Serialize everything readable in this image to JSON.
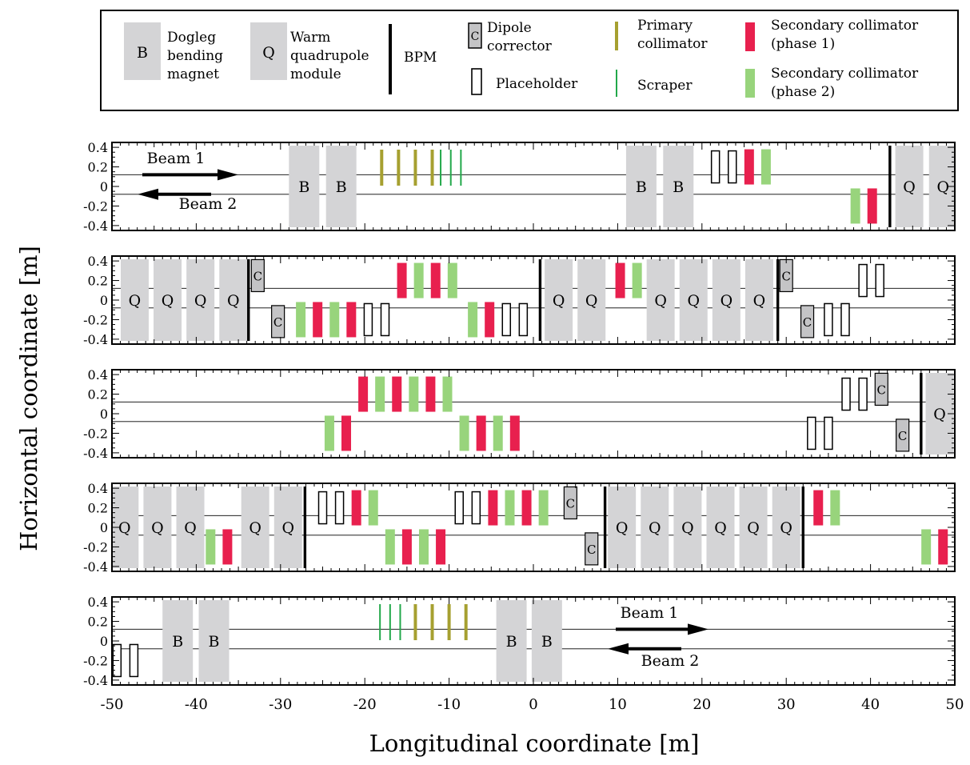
{
  "legend": {
    "dogleg": "B",
    "dogleg_text": [
      "Dogleg",
      "bending",
      "magnet"
    ],
    "quad": "Q",
    "quad_text": [
      "Warm",
      "quadrupole",
      "module"
    ],
    "bpm_text": "BPM",
    "corrector": "C",
    "corrector_text": [
      "Dipole",
      "corrector"
    ],
    "placeholder_text": "Placeholder",
    "primary_text": [
      "Primary",
      "collimator"
    ],
    "scraper_text": "Scraper",
    "sec1_text": [
      "Secondary collimator",
      "(phase 1)"
    ],
    "sec2_text": [
      "Secondary collimator",
      "(phase 2)"
    ]
  },
  "axes": {
    "xlabel": "Longitudinal coordinate [m]",
    "ylabel": "Horizontal coordinate [m]",
    "xticks": [
      "-50",
      "-40",
      "-30",
      "-20",
      "-10",
      "0",
      "10",
      "20",
      "30",
      "40",
      "50"
    ],
    "yticks": [
      "0.4",
      "0.2",
      "0",
      "-0.2",
      "-0.4"
    ],
    "xlim": [
      -50,
      50
    ],
    "ylim": [
      -0.45,
      0.45
    ]
  },
  "beam_labels": {
    "beam1": "Beam 1",
    "beam2": "Beam 2"
  },
  "colors": {
    "magnet": "#d4d4d6",
    "corrector": "#c4c4c6",
    "primary": "#a6a030",
    "scraper": "#22a84a",
    "sec1": "#e8204e",
    "sec2": "#98d47c"
  },
  "chart_data": {
    "type": "beamline-layout",
    "beam_lines_y": [
      0.12,
      -0.08
    ],
    "panels": [
      {
        "elements": [
          {
            "t": "B",
            "s": -27.2
          },
          {
            "t": "B",
            "s": -22.8
          },
          {
            "t": "P",
            "s": -18
          },
          {
            "t": "P",
            "s": -16
          },
          {
            "t": "P",
            "s": -14
          },
          {
            "t": "P",
            "s": -12
          },
          {
            "t": "S",
            "s": -11
          },
          {
            "t": "S",
            "s": -9.8
          },
          {
            "t": "S",
            "s": -8.6
          },
          {
            "t": "B",
            "s": 12.8
          },
          {
            "t": "B",
            "s": 17.2
          },
          {
            "t": "H",
            "s": 21.6,
            "b": 1
          },
          {
            "t": "H",
            "s": 23.6,
            "b": 1
          },
          {
            "t": "R",
            "s": 25.6,
            "b": 1
          },
          {
            "t": "G",
            "s": 27.6,
            "b": 1
          },
          {
            "t": "G",
            "s": 38.2,
            "b": 2
          },
          {
            "t": "R",
            "s": 40.2,
            "b": 2
          },
          {
            "t": "M",
            "s": 42.3
          },
          {
            "t": "Q",
            "s": 44.6
          },
          {
            "t": "Q",
            "s": 48.6
          }
        ],
        "beams": true
      },
      {
        "elements": [
          {
            "t": "Q",
            "s": -47.3
          },
          {
            "t": "Q",
            "s": -43.4
          },
          {
            "t": "Q",
            "s": -39.5
          },
          {
            "t": "Q",
            "s": -35.6
          },
          {
            "t": "M",
            "s": -33.8
          },
          {
            "t": "C",
            "s": -32.7,
            "b": 1
          },
          {
            "t": "C",
            "s": -30.3,
            "b": 2
          },
          {
            "t": "G",
            "s": -27.6,
            "b": 2
          },
          {
            "t": "R",
            "s": -25.6,
            "b": 2
          },
          {
            "t": "G",
            "s": -23.6,
            "b": 2
          },
          {
            "t": "R",
            "s": -21.6,
            "b": 2
          },
          {
            "t": "H",
            "s": -19.6,
            "b": 2
          },
          {
            "t": "H",
            "s": -17.6,
            "b": 2
          },
          {
            "t": "R",
            "s": -15.6,
            "b": 1
          },
          {
            "t": "G",
            "s": -13.6,
            "b": 1
          },
          {
            "t": "R",
            "s": -11.6,
            "b": 1
          },
          {
            "t": "G",
            "s": -9.6,
            "b": 1
          },
          {
            "t": "G",
            "s": -7.2,
            "b": 2
          },
          {
            "t": "R",
            "s": -5.2,
            "b": 2
          },
          {
            "t": "H",
            "s": -3.2,
            "b": 2
          },
          {
            "t": "H",
            "s": -1.2,
            "b": 2
          },
          {
            "t": "M",
            "s": 0.8
          },
          {
            "t": "Q",
            "s": 3
          },
          {
            "t": "Q",
            "s": 6.9
          },
          {
            "t": "R",
            "s": 10.3,
            "b": 1
          },
          {
            "t": "G",
            "s": 12.3,
            "b": 1
          },
          {
            "t": "Q",
            "s": 15.1
          },
          {
            "t": "Q",
            "s": 19
          },
          {
            "t": "Q",
            "s": 22.9
          },
          {
            "t": "Q",
            "s": 26.8
          },
          {
            "t": "M",
            "s": 29
          },
          {
            "t": "C",
            "s": 30,
            "b": 1
          },
          {
            "t": "C",
            "s": 32.5,
            "b": 2
          },
          {
            "t": "H",
            "s": 35,
            "b": 2
          },
          {
            "t": "H",
            "s": 37,
            "b": 2
          },
          {
            "t": "H",
            "s": 39.1,
            "b": 1
          },
          {
            "t": "H",
            "s": 41.1,
            "b": 1
          }
        ]
      },
      {
        "elements": [
          {
            "t": "G",
            "s": -24.2,
            "b": 2
          },
          {
            "t": "R",
            "s": -22.2,
            "b": 2
          },
          {
            "t": "R",
            "s": -20.2,
            "b": 1
          },
          {
            "t": "G",
            "s": -18.2,
            "b": 1
          },
          {
            "t": "R",
            "s": -16.2,
            "b": 1
          },
          {
            "t": "G",
            "s": -14.2,
            "b": 1
          },
          {
            "t": "R",
            "s": -12.2,
            "b": 1
          },
          {
            "t": "G",
            "s": -10.2,
            "b": 1
          },
          {
            "t": "G",
            "s": -8.2,
            "b": 2
          },
          {
            "t": "R",
            "s": -6.2,
            "b": 2
          },
          {
            "t": "G",
            "s": -4.2,
            "b": 2
          },
          {
            "t": "R",
            "s": -2.2,
            "b": 2
          },
          {
            "t": "H",
            "s": 33,
            "b": 2
          },
          {
            "t": "H",
            "s": 35,
            "b": 2
          },
          {
            "t": "H",
            "s": 37.1,
            "b": 1
          },
          {
            "t": "H",
            "s": 39.1,
            "b": 1
          },
          {
            "t": "C",
            "s": 41.3,
            "b": 1
          },
          {
            "t": "C",
            "s": 43.8,
            "b": 2
          },
          {
            "t": "M",
            "s": 46
          },
          {
            "t": "Q",
            "s": 48.2
          }
        ]
      },
      {
        "elements": [
          {
            "t": "Q",
            "s": -48.5
          },
          {
            "t": "Q",
            "s": -44.6
          },
          {
            "t": "Q",
            "s": -40.7
          },
          {
            "t": "G",
            "s": -38.3,
            "b": 2
          },
          {
            "t": "R",
            "s": -36.3,
            "b": 2
          },
          {
            "t": "Q",
            "s": -33
          },
          {
            "t": "Q",
            "s": -29.1
          },
          {
            "t": "M",
            "s": -27.1
          },
          {
            "t": "H",
            "s": -25,
            "b": 1
          },
          {
            "t": "H",
            "s": -23,
            "b": 1
          },
          {
            "t": "R",
            "s": -21,
            "b": 1
          },
          {
            "t": "G",
            "s": -19,
            "b": 1
          },
          {
            "t": "G",
            "s": -17,
            "b": 2
          },
          {
            "t": "R",
            "s": -15,
            "b": 2
          },
          {
            "t": "G",
            "s": -13,
            "b": 2
          },
          {
            "t": "R",
            "s": -11,
            "b": 2
          },
          {
            "t": "H",
            "s": -8.8,
            "b": 1
          },
          {
            "t": "H",
            "s": -6.8,
            "b": 1
          },
          {
            "t": "R",
            "s": -4.8,
            "b": 1
          },
          {
            "t": "G",
            "s": -2.8,
            "b": 1
          },
          {
            "t": "R",
            "s": -0.8,
            "b": 1
          },
          {
            "t": "G",
            "s": 1.2,
            "b": 1
          },
          {
            "t": "C",
            "s": 4.4,
            "b": 1
          },
          {
            "t": "C",
            "s": 6.9,
            "b": 2
          },
          {
            "t": "M",
            "s": 8.5
          },
          {
            "t": "Q",
            "s": 10.5
          },
          {
            "t": "Q",
            "s": 14.4
          },
          {
            "t": "Q",
            "s": 18.3
          },
          {
            "t": "Q",
            "s": 22.2
          },
          {
            "t": "Q",
            "s": 26.1
          },
          {
            "t": "Q",
            "s": 30
          },
          {
            "t": "M",
            "s": 32
          },
          {
            "t": "R",
            "s": 33.8,
            "b": 1
          },
          {
            "t": "G",
            "s": 35.8,
            "b": 1
          },
          {
            "t": "G",
            "s": 46.6,
            "b": 2
          },
          {
            "t": "R",
            "s": 48.6,
            "b": 2
          }
        ]
      },
      {
        "elements": [
          {
            "t": "H",
            "s": -49.4,
            "b": 2
          },
          {
            "t": "H",
            "s": -47.4,
            "b": 2
          },
          {
            "t": "B",
            "s": -42.2
          },
          {
            "t": "B",
            "s": -37.9
          },
          {
            "t": "S",
            "s": -18.2
          },
          {
            "t": "S",
            "s": -17
          },
          {
            "t": "S",
            "s": -15.8
          },
          {
            "t": "P",
            "s": -14
          },
          {
            "t": "P",
            "s": -12
          },
          {
            "t": "P",
            "s": -10
          },
          {
            "t": "P",
            "s": -8
          },
          {
            "t": "B",
            "s": -2.6
          },
          {
            "t": "B",
            "s": 1.6
          }
        ],
        "beams_end": true
      }
    ]
  }
}
